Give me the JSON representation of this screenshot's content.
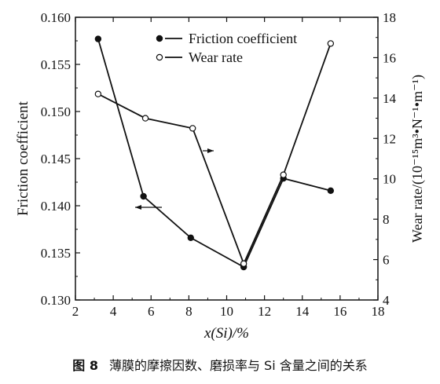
{
  "chart_data": {
    "type": "line",
    "xlabel": "x(Si)/%",
    "ylabel_left": "Friction coefficient",
    "ylabel_right": "Wear rate/(10⁻¹⁵m³•N⁻¹•m⁻¹)",
    "xlim": [
      2,
      18
    ],
    "xticks": [
      2,
      4,
      6,
      8,
      10,
      12,
      14,
      16,
      18
    ],
    "ylim_left": [
      0.13,
      0.16
    ],
    "yticks_left": [
      "0.130",
      "0.135",
      "0.140",
      "0.145",
      "0.150",
      "0.155",
      "0.160"
    ],
    "ylim_right": [
      4,
      18
    ],
    "yticks_right": [
      4,
      6,
      8,
      10,
      12,
      14,
      16,
      18
    ],
    "legend_position": "top",
    "series": [
      {
        "name": "Friction coefficient",
        "axis": "left",
        "marker": "filled-circle",
        "x": [
          3.2,
          5.6,
          8.1,
          10.9,
          13.0,
          15.5
        ],
        "y": [
          0.1577,
          0.141,
          0.1366,
          0.1335,
          0.1429,
          0.1416
        ]
      },
      {
        "name": "Wear rate",
        "axis": "right",
        "marker": "open-circle",
        "x": [
          3.2,
          5.7,
          8.2,
          10.9,
          13.0,
          15.5
        ],
        "y": [
          14.2,
          13.0,
          12.5,
          5.8,
          10.2,
          16.7
        ]
      }
    ]
  },
  "caption": {
    "number": "图 8",
    "text": "薄膜的摩擦因数、磨损率与 Si 含量之间的关系"
  }
}
